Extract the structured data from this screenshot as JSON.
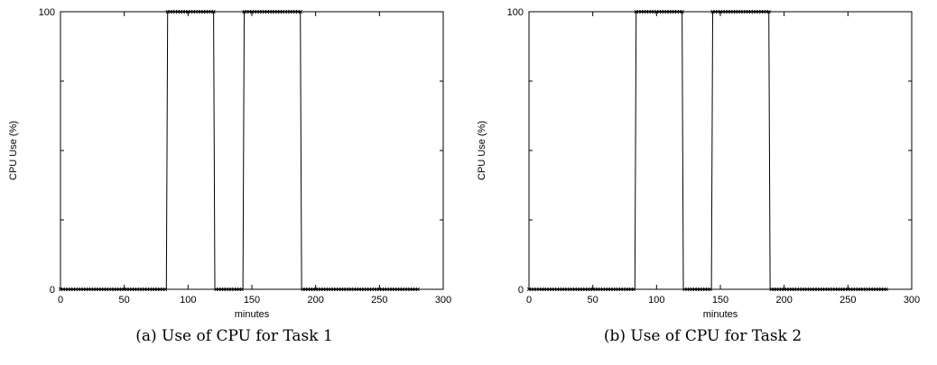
{
  "chart_data": [
    {
      "type": "line",
      "caption": "(a) Use of CPU for Task 1",
      "xlabel": "minutes",
      "ylabel": "CPU Use (%)",
      "xlim": [
        0,
        300
      ],
      "ylim": [
        0,
        100
      ],
      "xticks": [
        0,
        50,
        100,
        150,
        200,
        250,
        300
      ],
      "yticks": [
        0,
        100
      ],
      "x_tick_labels": [
        "0",
        "50",
        "100",
        "150",
        "200",
        "250",
        "300"
      ],
      "y_tick_labels": [
        "0",
        "100"
      ],
      "grid": false,
      "marker_step": 2,
      "series": [
        {
          "x": [
            0,
            83,
            84,
            120,
            121,
            143,
            144,
            188,
            189,
            280
          ],
          "y": [
            0,
            0,
            100,
            100,
            0,
            0,
            100,
            100,
            0,
            0
          ]
        }
      ]
    },
    {
      "type": "line",
      "caption": "(b) Use of CPU for Task 2",
      "xlabel": "minutes",
      "ylabel": "CPU Use (%)",
      "xlim": [
        0,
        300
      ],
      "ylim": [
        0,
        100
      ],
      "xticks": [
        0,
        50,
        100,
        150,
        200,
        250,
        300
      ],
      "yticks": [
        0,
        100
      ],
      "x_tick_labels": [
        "0",
        "50",
        "100",
        "150",
        "200",
        "250",
        "300"
      ],
      "y_tick_labels": [
        "0",
        "100"
      ],
      "grid": false,
      "marker_step": 2,
      "series": [
        {
          "x": [
            0,
            83,
            84,
            120,
            121,
            143,
            144,
            188,
            189,
            280
          ],
          "y": [
            0,
            0,
            100,
            100,
            0,
            0,
            100,
            100,
            0,
            0
          ]
        }
      ]
    }
  ]
}
